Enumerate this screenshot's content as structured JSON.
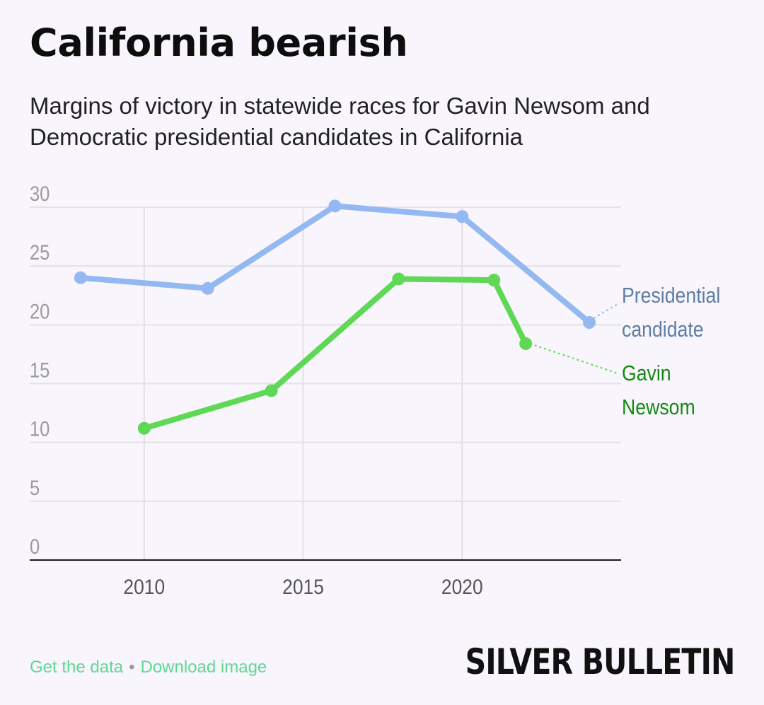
{
  "title": "California bearish",
  "subtitle": "Margins of victory in statewide races for Gavin Newsom and Democratic presidential candidates in California",
  "footer": {
    "get_data": "Get the data",
    "separator": "•",
    "download": "Download image"
  },
  "brand": "SILVER BULLETIN",
  "colors": {
    "presidential": "#93b8f2",
    "presidential_label": "#5e7da3",
    "newsom": "#5fd855",
    "newsom_label": "#138a13",
    "grid": "#e3e0e6",
    "tick_label": "#9b9b9b",
    "footer_link": "#5fd893"
  },
  "chart_data": {
    "type": "line",
    "title": "California bearish",
    "subtitle": "Margins of victory in statewide races for Gavin Newsom and Democratic presidential candidates in California",
    "xlim": [
      2006.4,
      2025
    ],
    "ylim": [
      0,
      30
    ],
    "x_ticks": [
      2010,
      2015,
      2020
    ],
    "y_ticks": [
      0,
      5,
      10,
      15,
      20,
      25,
      30
    ],
    "grid": true,
    "series": [
      {
        "name": "Presidential candidate",
        "label_lines": [
          "Presidential",
          "candidate"
        ],
        "x": [
          2008,
          2012,
          2016,
          2020,
          2024
        ],
        "values": [
          24.0,
          23.1,
          30.1,
          29.2,
          20.2
        ]
      },
      {
        "name": "Gavin Newsom",
        "label_lines": [
          "Gavin",
          "Newsom"
        ],
        "x": [
          2010,
          2014,
          2018,
          2021,
          2022
        ],
        "values": [
          11.2,
          14.4,
          23.9,
          23.8,
          18.4
        ]
      }
    ]
  }
}
